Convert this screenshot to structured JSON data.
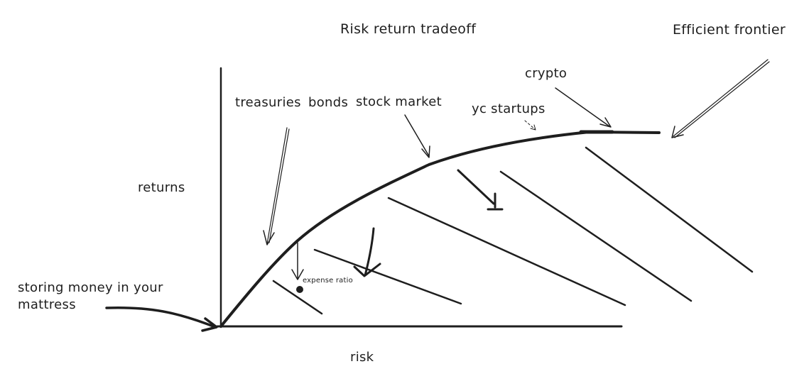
{
  "title": "Risk return tradeoff",
  "axes": {
    "x_label": "risk",
    "y_label": "returns"
  },
  "frontier_label": "Efficient frontier",
  "assets": {
    "mattress": [
      "storing money in your",
      "mattress"
    ],
    "treasuries": "treasuries",
    "bonds": "bonds",
    "stock_market": "stock market",
    "yc_startups": "yc startups",
    "crypto": "crypto",
    "expense_ratio": "expense ratio"
  },
  "colors": {
    "ink": "#1e1e1e",
    "background": "#ffffff"
  }
}
